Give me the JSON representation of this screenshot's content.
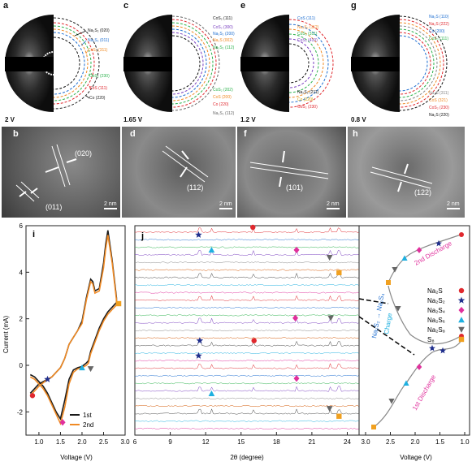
{
  "panels": {
    "a": {
      "letter": "a",
      "voltage": "2 V",
      "labels": [
        {
          "text": "Na₂S₂ (020)",
          "color": "#111111"
        },
        {
          "text": "Na₂S₂ (011)",
          "color": "#1f6fd1"
        },
        {
          "text": "CoS₂ (311)",
          "color": "#f08a24"
        },
        {
          "text": "CoS₂ (230)",
          "color": "#2bb24c"
        },
        {
          "text": "CoS (111)",
          "color": "#e0282e"
        },
        {
          "text": "Co (220)",
          "color": "#222222"
        }
      ]
    },
    "c": {
      "letter": "c",
      "voltage": "1.65 V",
      "labels": [
        {
          "text": "CoS₂ (111)",
          "color": "#111111"
        },
        {
          "text": "CoS₂ (300)",
          "color": "#7a3fc0"
        },
        {
          "text": "Na₂S₂ (200)",
          "color": "#1f6fd1"
        },
        {
          "text": "Na₂S (002)",
          "color": "#f08a24"
        },
        {
          "text": "Na₂S₂ (112)",
          "color": "#2bb24c"
        },
        {
          "text": "CoS₂ (202)",
          "color": "#2bb24c"
        },
        {
          "text": "CoS (200)",
          "color": "#f08a24"
        },
        {
          "text": "Co (220)",
          "color": "#e0282e"
        },
        {
          "text": "Na₂S₂ (112)",
          "color": "#666666"
        }
      ]
    },
    "e": {
      "letter": "e",
      "voltage": "1.2 V",
      "labels": [
        {
          "text": "CoS (111)",
          "color": "#1f6fd1"
        },
        {
          "text": "Na₂S₂ (112)",
          "color": "#f08a24"
        },
        {
          "text": "CoS₂ (311)",
          "color": "#2bb24c"
        },
        {
          "text": "CoS₂ (410)",
          "color": "#7a3fc0"
        },
        {
          "text": "Na₂S₂ (211)",
          "color": "#111111"
        },
        {
          "text": "Co (220)",
          "color": "#f0c000"
        },
        {
          "text": "CoS₂ (230)",
          "color": "#e0282e"
        }
      ]
    },
    "g": {
      "letter": "g",
      "voltage": "0.8 V",
      "labels": [
        {
          "text": "Na₂S (110)",
          "color": "#1f6fd1"
        },
        {
          "text": "Na₂S (222)",
          "color": "#e0282e"
        },
        {
          "text": "Co (200)",
          "color": "#1f6fd1"
        },
        {
          "text": "CoS₂ (111)",
          "color": "#2bb24c"
        },
        {
          "text": "Na₂S (311)",
          "color": "#888888"
        },
        {
          "text": "CoS (321)",
          "color": "#f08a24"
        },
        {
          "text": "CoS₂ (230)",
          "color": "#e0282e"
        },
        {
          "text": "Na₂S (220)",
          "color": "#111111"
        }
      ]
    },
    "b": {
      "letter": "b",
      "hkl": [
        "(020)",
        "(011)"
      ],
      "scale": "2 nm"
    },
    "d": {
      "letter": "d",
      "hkl": [
        "(112)"
      ],
      "scale": "2 nm"
    },
    "f": {
      "letter": "f",
      "hkl": [
        "(101)"
      ],
      "scale": "2 nm"
    },
    "h": {
      "letter": "h",
      "hkl": [
        "(122)"
      ],
      "scale": "2 nm"
    }
  },
  "panel_i": {
    "letter": "i",
    "chart_data": {
      "type": "line",
      "xlabel": "Voltage (V)",
      "ylabel": "Current (mA)",
      "xlim": [
        0.7,
        3.0
      ],
      "ylim": [
        -3.0,
        6.0
      ],
      "xticks": [
        "1.0",
        "1.5",
        "2.0",
        "2.5",
        "3.0"
      ],
      "yticks": [
        "-2",
        "0",
        "2",
        "4",
        "6"
      ],
      "series": [
        {
          "name": "1st",
          "color": "#1a1a1a",
          "x": [
            0.8,
            0.9,
            1.0,
            1.1,
            1.2,
            1.3,
            1.4,
            1.5,
            1.55,
            1.6,
            1.65,
            1.7,
            1.8,
            1.9,
            2.0,
            2.1,
            2.2,
            2.25,
            2.3,
            2.4,
            2.5,
            2.55,
            2.6,
            2.7,
            2.8,
            2.8,
            2.7,
            2.6,
            2.5,
            2.4,
            2.3,
            2.2,
            2.15,
            2.1,
            2.0,
            1.9,
            1.8,
            1.7,
            1.6,
            1.5,
            1.4,
            1.3,
            1.2,
            1.1,
            1.0,
            0.9,
            0.8
          ],
          "y": [
            -1.2,
            -1.0,
            -0.8,
            -0.7,
            -0.6,
            -0.5,
            -0.3,
            -0.1,
            0.1,
            0.3,
            0.6,
            0.9,
            1.2,
            1.5,
            1.9,
            2.9,
            3.7,
            3.6,
            3.2,
            3.3,
            4.4,
            5.2,
            5.8,
            4.5,
            2.9,
            2.7,
            2.5,
            2.3,
            2.0,
            1.6,
            1.1,
            0.6,
            0.2,
            0.1,
            -0.05,
            -0.1,
            -0.2,
            -0.6,
            -1.5,
            -2.3,
            -2.0,
            -1.6,
            -1.2,
            -0.9,
            -0.7,
            -0.5,
            -0.4
          ]
        },
        {
          "name": "2nd",
          "color": "#f08a24",
          "x": [
            0.8,
            0.9,
            1.0,
            1.1,
            1.2,
            1.3,
            1.4,
            1.5,
            1.55,
            1.6,
            1.65,
            1.7,
            1.8,
            1.9,
            2.0,
            2.1,
            2.2,
            2.25,
            2.3,
            2.4,
            2.5,
            2.55,
            2.6,
            2.7,
            2.8,
            2.8,
            2.7,
            2.6,
            2.5,
            2.4,
            2.3,
            2.2,
            2.15,
            2.1,
            2.0,
            1.9,
            1.8,
            1.7,
            1.6,
            1.5,
            1.4,
            1.3,
            1.2,
            1.1,
            1.0,
            0.9,
            0.8
          ],
          "y": [
            -1.3,
            -1.1,
            -0.9,
            -0.75,
            -0.6,
            -0.5,
            -0.3,
            -0.1,
            0.1,
            0.3,
            0.6,
            0.9,
            1.2,
            1.5,
            1.8,
            2.8,
            3.6,
            3.5,
            3.1,
            3.2,
            4.2,
            5.0,
            5.6,
            4.4,
            2.8,
            2.6,
            2.4,
            2.2,
            1.9,
            1.5,
            1.0,
            0.5,
            0.1,
            0.0,
            -0.1,
            -0.15,
            -0.3,
            -0.8,
            -1.8,
            -2.5,
            -2.1,
            -1.7,
            -1.3,
            -1.0,
            -0.8,
            -0.6,
            -0.5
          ]
        }
      ],
      "markers": [
        {
          "shape": "circle",
          "color": "#e0282e",
          "x": 0.85,
          "y": -1.3
        },
        {
          "shape": "star",
          "color": "#1f2e8c",
          "x": 1.2,
          "y": -0.6
        },
        {
          "shape": "diamond",
          "color": "#e0309c",
          "x": 1.55,
          "y": -2.45
        },
        {
          "shape": "triangle",
          "color": "#1fb0e0",
          "x": 2.0,
          "y": -0.1
        },
        {
          "shape": "triangle-down",
          "color": "#666666",
          "x": 2.2,
          "y": -0.15
        },
        {
          "shape": "square",
          "color": "#f0a020",
          "x": 2.85,
          "y": 2.65
        }
      ]
    }
  },
  "panel_j": {
    "letter": "j",
    "chart_data": {
      "type": "line",
      "xlabel": "2θ (degree)",
      "xlim": [
        6,
        25
      ],
      "xticks": [
        "6",
        "9",
        "12",
        "15",
        "18",
        "21",
        "24"
      ],
      "traces": 27,
      "legend": [
        {
          "shape": "circle",
          "color": "#e0282e",
          "label": "Na₂S"
        },
        {
          "shape": "star",
          "color": "#1f2e8c",
          "label": "Na₂S₂"
        },
        {
          "shape": "diamond",
          "color": "#e0309c",
          "label": "Na₂S₄"
        },
        {
          "shape": "triangle",
          "color": "#1fb0e0",
          "label": "Na₂S₆"
        },
        {
          "shape": "triangle-down",
          "color": "#666666",
          "label": "Na₂S₈"
        },
        {
          "shape": "square",
          "color": "#f0a020",
          "label": "S₈"
        }
      ],
      "markers": [
        {
          "shape": "circle",
          "color": "#e0282e",
          "x": 16.0,
          "row": 0
        },
        {
          "shape": "star",
          "color": "#1f2e8c",
          "x": 11.4,
          "row": 1
        },
        {
          "shape": "triangle",
          "color": "#1fb0e0",
          "x": 12.5,
          "row": 3
        },
        {
          "shape": "diamond",
          "color": "#e0309c",
          "x": 19.7,
          "row": 3
        },
        {
          "shape": "triangle-down",
          "color": "#666666",
          "x": 22.5,
          "row": 4
        },
        {
          "shape": "square",
          "color": "#f0a020",
          "x": 23.3,
          "row": 6
        },
        {
          "shape": "diamond",
          "color": "#e0309c",
          "x": 19.6,
          "row": 12
        },
        {
          "shape": "triangle-down",
          "color": "#666666",
          "x": 22.6,
          "row": 12
        },
        {
          "shape": "star",
          "color": "#1f2e8c",
          "x": 11.5,
          "row": 15
        },
        {
          "shape": "circle",
          "color": "#e0282e",
          "x": 16.1,
          "row": 15
        },
        {
          "shape": "star",
          "color": "#1f2e8c",
          "x": 11.4,
          "row": 17
        },
        {
          "shape": "diamond",
          "color": "#e0309c",
          "x": 19.7,
          "row": 20
        },
        {
          "shape": "triangle",
          "color": "#1fb0e0",
          "x": 12.5,
          "row": 22
        },
        {
          "shape": "triangle-down",
          "color": "#666666",
          "x": 22.5,
          "row": 24
        },
        {
          "shape": "square",
          "color": "#f0a020",
          "x": 23.3,
          "row": 25
        }
      ],
      "right": {
        "xlabel": "Voltage (V)",
        "xticks": [
          "3.0",
          "2.5",
          "2.0",
          "1.5",
          "1.0"
        ],
        "annotations": [
          "2nd Discharge",
          "Na₂S₂ → Na₂S₄",
          "Charge",
          "1st Discharge"
        ]
      }
    }
  }
}
